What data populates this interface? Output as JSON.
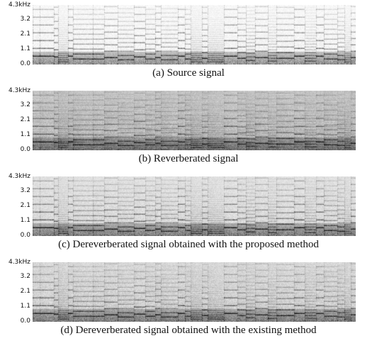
{
  "y_ticks": [
    "4.3kHz",
    "3.2",
    "2.1",
    "1.1",
    "0.0"
  ],
  "panels": [
    {
      "id": "a",
      "caption": "(a) Source signal",
      "variant": "source"
    },
    {
      "id": "b",
      "caption": "(b) Reverberated signal",
      "variant": "reverb"
    },
    {
      "id": "c",
      "caption": "(c) Dereverberated signal obtained with the proposed method",
      "variant": "proposed"
    },
    {
      "id": "d",
      "caption": "(d) Dereverberated signal obtained with the existing method",
      "variant": "existing"
    }
  ]
}
